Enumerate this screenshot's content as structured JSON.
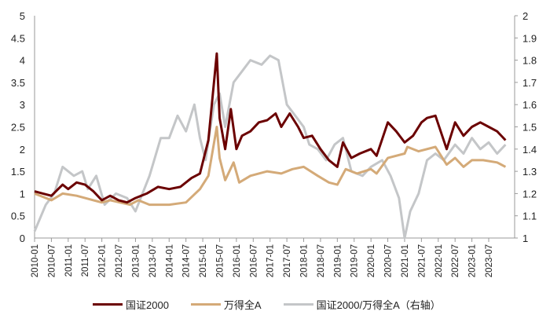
{
  "chart_data": {
    "type": "line",
    "title": "",
    "y_left": {
      "min": 0,
      "max": 5,
      "step": 0.5,
      "ticks": [
        "0",
        "0.5",
        "1",
        "1.5",
        "2",
        "2.5",
        "3",
        "3.5",
        "4",
        "4.5",
        "5"
      ]
    },
    "y_right": {
      "min": 1,
      "max": 2,
      "step": 0.1,
      "ticks": [
        "1",
        "1.1",
        "1.2",
        "1.3",
        "1.4",
        "1.5",
        "1.6",
        "1.7",
        "1.8",
        "1.9",
        "2"
      ]
    },
    "x_ticks": [
      "2010-01",
      "2010-07",
      "2011-01",
      "2011-07",
      "2012-01",
      "2012-07",
      "2013-01",
      "2013-07",
      "2014-01",
      "2014-07",
      "2015-01",
      "2015-07",
      "2016-01",
      "2016-07",
      "2017-01",
      "2017-07",
      "2018-01",
      "2018-07",
      "2019-01",
      "2019-07",
      "2020-01",
      "2020-07",
      "2021-01",
      "2021-07",
      "2022-01",
      "2022-07",
      "2023-01",
      "2023-07"
    ],
    "grid": false,
    "legend_position": "bottom",
    "series": [
      {
        "name": "国证2000",
        "axis": "left",
        "color": "#6b0000",
        "points": [
          [
            "2010-01",
            1.05
          ],
          [
            "2010-04",
            1.0
          ],
          [
            "2010-07",
            0.95
          ],
          [
            "2010-11",
            1.2
          ],
          [
            "2011-01",
            1.1
          ],
          [
            "2011-04",
            1.25
          ],
          [
            "2011-07",
            1.2
          ],
          [
            "2011-10",
            1.05
          ],
          [
            "2012-01",
            0.85
          ],
          [
            "2012-04",
            0.95
          ],
          [
            "2012-07",
            0.85
          ],
          [
            "2012-10",
            0.8
          ],
          [
            "2013-01",
            0.9
          ],
          [
            "2013-05",
            1.0
          ],
          [
            "2013-09",
            1.15
          ],
          [
            "2014-01",
            1.1
          ],
          [
            "2014-05",
            1.15
          ],
          [
            "2014-09",
            1.35
          ],
          [
            "2014-12",
            1.45
          ],
          [
            "2015-03",
            2.2
          ],
          [
            "2015-06",
            4.15
          ],
          [
            "2015-07",
            2.7
          ],
          [
            "2015-09",
            2.0
          ],
          [
            "2015-11",
            2.9
          ],
          [
            "2016-01",
            2.0
          ],
          [
            "2016-03",
            2.3
          ],
          [
            "2016-06",
            2.4
          ],
          [
            "2016-09",
            2.6
          ],
          [
            "2016-12",
            2.65
          ],
          [
            "2017-03",
            2.8
          ],
          [
            "2017-05",
            2.5
          ],
          [
            "2017-08",
            2.8
          ],
          [
            "2017-11",
            2.5
          ],
          [
            "2018-01",
            2.25
          ],
          [
            "2018-04",
            2.3
          ],
          [
            "2018-07",
            2.0
          ],
          [
            "2018-10",
            1.75
          ],
          [
            "2019-01",
            1.6
          ],
          [
            "2019-03",
            2.15
          ],
          [
            "2019-06",
            1.8
          ],
          [
            "2019-09",
            1.9
          ],
          [
            "2020-01",
            2.0
          ],
          [
            "2020-03",
            1.85
          ],
          [
            "2020-07",
            2.6
          ],
          [
            "2020-10",
            2.4
          ],
          [
            "2021-01",
            2.15
          ],
          [
            "2021-04",
            2.3
          ],
          [
            "2021-07",
            2.6
          ],
          [
            "2021-09",
            2.7
          ],
          [
            "2021-12",
            2.75
          ],
          [
            "2022-04",
            2.0
          ],
          [
            "2022-07",
            2.6
          ],
          [
            "2022-10",
            2.3
          ],
          [
            "2023-01",
            2.5
          ],
          [
            "2023-04",
            2.6
          ],
          [
            "2023-07",
            2.5
          ],
          [
            "2023-10",
            2.4
          ],
          [
            "2024-01",
            2.2
          ]
        ]
      },
      {
        "name": "万得全A",
        "axis": "left",
        "color": "#d4aa78",
        "points": [
          [
            "2010-01",
            1.0
          ],
          [
            "2010-07",
            0.85
          ],
          [
            "2010-11",
            1.0
          ],
          [
            "2011-04",
            0.95
          ],
          [
            "2011-10",
            0.85
          ],
          [
            "2012-01",
            0.8
          ],
          [
            "2012-04",
            0.85
          ],
          [
            "2012-11",
            0.75
          ],
          [
            "2013-02",
            0.85
          ],
          [
            "2013-06",
            0.75
          ],
          [
            "2014-01",
            0.75
          ],
          [
            "2014-07",
            0.8
          ],
          [
            "2014-12",
            1.1
          ],
          [
            "2015-03",
            1.4
          ],
          [
            "2015-06",
            2.5
          ],
          [
            "2015-07",
            1.8
          ],
          [
            "2015-09",
            1.3
          ],
          [
            "2015-12",
            1.7
          ],
          [
            "2016-02",
            1.25
          ],
          [
            "2016-06",
            1.4
          ],
          [
            "2016-12",
            1.5
          ],
          [
            "2017-05",
            1.45
          ],
          [
            "2017-09",
            1.55
          ],
          [
            "2018-01",
            1.6
          ],
          [
            "2018-06",
            1.4
          ],
          [
            "2018-10",
            1.25
          ],
          [
            "2019-01",
            1.2
          ],
          [
            "2019-04",
            1.55
          ],
          [
            "2019-08",
            1.45
          ],
          [
            "2020-01",
            1.55
          ],
          [
            "2020-03",
            1.45
          ],
          [
            "2020-07",
            1.8
          ],
          [
            "2021-01",
            1.9
          ],
          [
            "2021-02",
            2.05
          ],
          [
            "2021-06",
            1.95
          ],
          [
            "2021-12",
            2.05
          ],
          [
            "2022-04",
            1.65
          ],
          [
            "2022-07",
            1.8
          ],
          [
            "2022-10",
            1.6
          ],
          [
            "2023-01",
            1.75
          ],
          [
            "2023-05",
            1.75
          ],
          [
            "2023-10",
            1.7
          ],
          [
            "2024-01",
            1.6
          ]
        ]
      },
      {
        "name": "国证2000/万得全A（右轴）",
        "axis": "right",
        "color": "#c4c6c8",
        "points": [
          [
            "2010-01",
            1.03
          ],
          [
            "2010-05",
            1.15
          ],
          [
            "2010-08",
            1.2
          ],
          [
            "2010-11",
            1.32
          ],
          [
            "2011-03",
            1.28
          ],
          [
            "2011-06",
            1.3
          ],
          [
            "2011-08",
            1.22
          ],
          [
            "2011-11",
            1.28
          ],
          [
            "2012-02",
            1.15
          ],
          [
            "2012-06",
            1.2
          ],
          [
            "2012-10",
            1.18
          ],
          [
            "2013-01",
            1.12
          ],
          [
            "2013-06",
            1.28
          ],
          [
            "2013-10",
            1.45
          ],
          [
            "2014-01",
            1.45
          ],
          [
            "2014-04",
            1.55
          ],
          [
            "2014-07",
            1.48
          ],
          [
            "2014-10",
            1.6
          ],
          [
            "2014-12",
            1.45
          ],
          [
            "2015-02",
            1.35
          ],
          [
            "2015-05",
            1.6
          ],
          [
            "2015-07",
            1.65
          ],
          [
            "2015-09",
            1.5
          ],
          [
            "2015-12",
            1.7
          ],
          [
            "2016-03",
            1.75
          ],
          [
            "2016-06",
            1.8
          ],
          [
            "2016-10",
            1.78
          ],
          [
            "2017-01",
            1.82
          ],
          [
            "2017-04",
            1.8
          ],
          [
            "2017-07",
            1.6
          ],
          [
            "2017-10",
            1.55
          ],
          [
            "2018-01",
            1.5
          ],
          [
            "2018-03",
            1.42
          ],
          [
            "2018-06",
            1.4
          ],
          [
            "2018-09",
            1.35
          ],
          [
            "2018-12",
            1.42
          ],
          [
            "2019-03",
            1.45
          ],
          [
            "2019-06",
            1.3
          ],
          [
            "2019-10",
            1.28
          ],
          [
            "2020-01",
            1.32
          ],
          [
            "2020-05",
            1.35
          ],
          [
            "2020-08",
            1.28
          ],
          [
            "2020-11",
            1.18
          ],
          [
            "2021-01",
            1.0
          ],
          [
            "2021-03",
            1.12
          ],
          [
            "2021-06",
            1.2
          ],
          [
            "2021-09",
            1.35
          ],
          [
            "2021-12",
            1.38
          ],
          [
            "2022-03",
            1.35
          ],
          [
            "2022-07",
            1.42
          ],
          [
            "2022-10",
            1.38
          ],
          [
            "2023-01",
            1.45
          ],
          [
            "2023-04",
            1.4
          ],
          [
            "2023-07",
            1.43
          ],
          [
            "2023-10",
            1.38
          ],
          [
            "2024-01",
            1.42
          ]
        ]
      }
    ]
  },
  "legend": [
    "国证2000",
    "万得全A",
    "国证2000/万得全A（右轴）"
  ]
}
